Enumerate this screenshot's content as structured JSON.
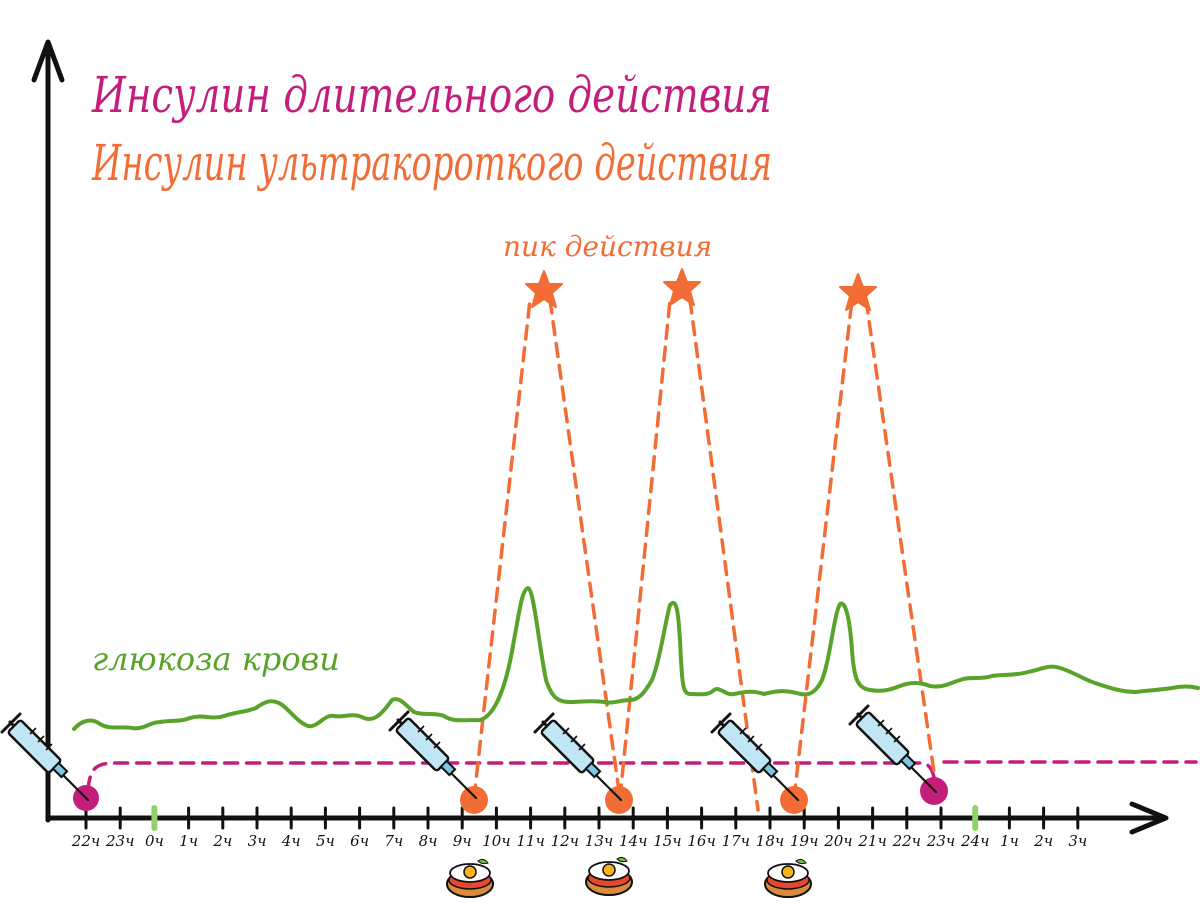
{
  "legend": {
    "long_acting": "Инсулин длительного действия",
    "ultra_short": "Инсулин ультракороткого действия"
  },
  "peak_label": "пик действия",
  "glucose_label": "глюкоза крови",
  "time_axis": {
    "labels": [
      "22ч",
      "23ч",
      "0ч",
      "1ч",
      "2ч",
      "3ч",
      "4ч",
      "5ч",
      "6ч",
      "7ч",
      "8ч",
      "9ч",
      "10ч",
      "11ч",
      "12ч",
      "13ч",
      "14ч",
      "15ч",
      "16ч",
      "17ч",
      "18ч",
      "19ч",
      "20ч",
      "21ч",
      "22ч",
      "23ч",
      "24ч",
      "1ч",
      "2ч",
      "3ч"
    ],
    "midnight_markers": [
      "0ч",
      "24ч"
    ]
  },
  "injections": [
    {
      "type": "long_acting",
      "time": "22ч",
      "color": "#c41e7b"
    },
    {
      "type": "ultra_short",
      "time": "9ч",
      "color": "#f26d35"
    },
    {
      "type": "ultra_short",
      "time": "13ч",
      "color": "#f26d35"
    },
    {
      "type": "ultra_short",
      "time": "18ч",
      "color": "#f26d35"
    },
    {
      "type": "long_acting",
      "time": "22ч",
      "color": "#c41e7b"
    }
  ],
  "meals": [
    "9ч",
    "13ч",
    "18ч"
  ],
  "colors": {
    "long_acting": "#c41e7b",
    "ultra_short": "#f26d35",
    "glucose": "#5aa32a",
    "axis": "#111111",
    "midnight_marker": "#8fd16a"
  },
  "icons": {
    "injection": "syringe-icon",
    "peak": "star-icon",
    "meal": "fried-egg-sandwich-icon"
  }
}
